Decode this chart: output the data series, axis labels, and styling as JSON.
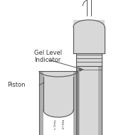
{
  "white": "#ffffff",
  "off_white": "#f0f0f0",
  "light_gray": "#d8d8d8",
  "mid_gray": "#b0b0b0",
  "dark_gray": "#808080",
  "darker_gray": "#606060",
  "line_color": "#555555",
  "text_color": "#333333",
  "label_gel": "Gel Level\nIndicator",
  "label_piston": "Piston",
  "label_rx": "x Only",
  "label_rx2": "ET MRd"
}
